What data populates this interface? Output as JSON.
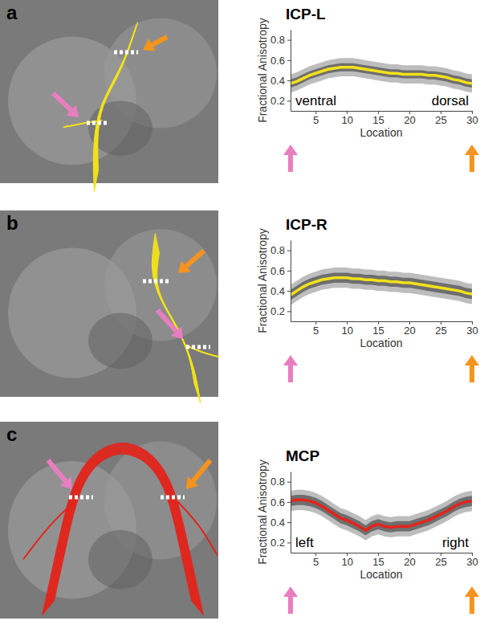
{
  "chart_data": [
    {
      "type": "line",
      "panel": "a",
      "title": "ICP-L",
      "x_label": "Location",
      "y_label": "Fractional Anisotropy",
      "annotations": [
        "ventral",
        "dorsal"
      ],
      "x": [
        1,
        2,
        3,
        4,
        5,
        6,
        7,
        8,
        9,
        10,
        11,
        12,
        13,
        14,
        15,
        16,
        17,
        18,
        19,
        20,
        21,
        22,
        23,
        24,
        25,
        26,
        27,
        28,
        29,
        30
      ],
      "xlim": [
        1,
        30
      ],
      "xticks": [
        5,
        10,
        15,
        20,
        25,
        30
      ],
      "ylim": [
        0.1,
        0.9
      ],
      "yticks": [
        0.2,
        0.4,
        0.6,
        0.8
      ],
      "series": [
        {
          "color": "#f2e21a",
          "values": [
            0.37,
            0.39,
            0.42,
            0.45,
            0.47,
            0.49,
            0.51,
            0.52,
            0.53,
            0.53,
            0.53,
            0.52,
            0.51,
            0.5,
            0.49,
            0.48,
            0.47,
            0.47,
            0.46,
            0.46,
            0.46,
            0.46,
            0.45,
            0.45,
            0.44,
            0.43,
            0.41,
            0.4,
            0.38,
            0.37
          ],
          "inner_lower": [
            0.33,
            0.35,
            0.38,
            0.41,
            0.43,
            0.45,
            0.47,
            0.48,
            0.49,
            0.49,
            0.49,
            0.48,
            0.47,
            0.46,
            0.45,
            0.44,
            0.43,
            0.43,
            0.42,
            0.42,
            0.42,
            0.42,
            0.41,
            0.41,
            0.4,
            0.39,
            0.37,
            0.36,
            0.34,
            0.33
          ],
          "inner_upper": [
            0.41,
            0.43,
            0.46,
            0.49,
            0.51,
            0.53,
            0.55,
            0.56,
            0.57,
            0.57,
            0.57,
            0.56,
            0.55,
            0.54,
            0.53,
            0.52,
            0.51,
            0.51,
            0.5,
            0.5,
            0.5,
            0.5,
            0.49,
            0.49,
            0.48,
            0.47,
            0.45,
            0.44,
            0.42,
            0.41
          ],
          "outer_lower": [
            0.28,
            0.3,
            0.33,
            0.36,
            0.38,
            0.4,
            0.42,
            0.43,
            0.44,
            0.44,
            0.44,
            0.43,
            0.42,
            0.41,
            0.4,
            0.39,
            0.38,
            0.38,
            0.37,
            0.37,
            0.37,
            0.37,
            0.36,
            0.36,
            0.35,
            0.34,
            0.32,
            0.31,
            0.29,
            0.28
          ],
          "outer_upper": [
            0.46,
            0.48,
            0.51,
            0.54,
            0.56,
            0.58,
            0.6,
            0.61,
            0.62,
            0.62,
            0.62,
            0.61,
            0.6,
            0.59,
            0.58,
            0.57,
            0.56,
            0.56,
            0.55,
            0.55,
            0.55,
            0.55,
            0.54,
            0.54,
            0.53,
            0.52,
            0.5,
            0.49,
            0.47,
            0.46
          ]
        }
      ]
    },
    {
      "type": "line",
      "panel": "b",
      "title": "ICP-R",
      "x_label": "Location",
      "y_label": "Fractional Anisotropy",
      "x": [
        1,
        2,
        3,
        4,
        5,
        6,
        7,
        8,
        9,
        10,
        11,
        12,
        13,
        14,
        15,
        16,
        17,
        18,
        19,
        20,
        21,
        22,
        23,
        24,
        25,
        26,
        27,
        28,
        29,
        30
      ],
      "xlim": [
        1,
        30
      ],
      "xticks": [
        5,
        10,
        15,
        20,
        25,
        30
      ],
      "ylim": [
        0.1,
        0.9
      ],
      "yticks": [
        0.2,
        0.4,
        0.6,
        0.8
      ],
      "series": [
        {
          "color": "#f2e21a",
          "values": [
            0.36,
            0.4,
            0.44,
            0.47,
            0.49,
            0.51,
            0.52,
            0.53,
            0.53,
            0.53,
            0.52,
            0.52,
            0.51,
            0.51,
            0.5,
            0.5,
            0.49,
            0.49,
            0.48,
            0.48,
            0.47,
            0.46,
            0.45,
            0.44,
            0.43,
            0.42,
            0.41,
            0.4,
            0.38,
            0.37
          ],
          "inner_lower": [
            0.31,
            0.35,
            0.39,
            0.42,
            0.44,
            0.46,
            0.47,
            0.48,
            0.48,
            0.48,
            0.47,
            0.47,
            0.46,
            0.46,
            0.45,
            0.45,
            0.44,
            0.44,
            0.43,
            0.43,
            0.42,
            0.41,
            0.4,
            0.39,
            0.38,
            0.37,
            0.36,
            0.35,
            0.33,
            0.32
          ],
          "inner_upper": [
            0.41,
            0.45,
            0.49,
            0.52,
            0.54,
            0.56,
            0.57,
            0.58,
            0.58,
            0.58,
            0.57,
            0.57,
            0.56,
            0.56,
            0.55,
            0.55,
            0.54,
            0.54,
            0.53,
            0.53,
            0.52,
            0.51,
            0.5,
            0.49,
            0.48,
            0.47,
            0.46,
            0.45,
            0.43,
            0.42
          ],
          "outer_lower": [
            0.26,
            0.3,
            0.34,
            0.37,
            0.39,
            0.41,
            0.42,
            0.43,
            0.43,
            0.43,
            0.42,
            0.42,
            0.41,
            0.41,
            0.4,
            0.4,
            0.39,
            0.39,
            0.38,
            0.38,
            0.37,
            0.36,
            0.35,
            0.34,
            0.33,
            0.32,
            0.31,
            0.3,
            0.28,
            0.27
          ],
          "outer_upper": [
            0.46,
            0.5,
            0.54,
            0.57,
            0.59,
            0.61,
            0.62,
            0.63,
            0.63,
            0.63,
            0.62,
            0.62,
            0.61,
            0.61,
            0.6,
            0.6,
            0.59,
            0.59,
            0.58,
            0.58,
            0.57,
            0.56,
            0.55,
            0.54,
            0.53,
            0.52,
            0.51,
            0.5,
            0.48,
            0.47
          ]
        }
      ]
    },
    {
      "type": "line",
      "panel": "c",
      "title": "MCP",
      "x_label": "Location",
      "y_label": "Fractional Anisotropy",
      "annotations": [
        "left",
        "right"
      ],
      "x": [
        1,
        2,
        3,
        4,
        5,
        6,
        7,
        8,
        9,
        10,
        11,
        12,
        13,
        14,
        15,
        16,
        17,
        18,
        19,
        20,
        21,
        22,
        23,
        24,
        25,
        26,
        27,
        28,
        29,
        30
      ],
      "xlim": [
        1,
        30
      ],
      "xticks": [
        5,
        10,
        15,
        20,
        25,
        30
      ],
      "ylim": [
        0.1,
        0.9
      ],
      "yticks": [
        0.2,
        0.4,
        0.6,
        0.8
      ],
      "series": [
        {
          "color": "#e3241b",
          "values": [
            0.61,
            0.62,
            0.62,
            0.61,
            0.59,
            0.56,
            0.52,
            0.48,
            0.44,
            0.42,
            0.39,
            0.36,
            0.32,
            0.36,
            0.38,
            0.36,
            0.35,
            0.36,
            0.36,
            0.36,
            0.38,
            0.4,
            0.42,
            0.45,
            0.48,
            0.51,
            0.55,
            0.58,
            0.6,
            0.61
          ],
          "inner_lower": [
            0.56,
            0.57,
            0.57,
            0.56,
            0.54,
            0.51,
            0.47,
            0.43,
            0.39,
            0.37,
            0.34,
            0.31,
            0.27,
            0.31,
            0.33,
            0.31,
            0.3,
            0.31,
            0.31,
            0.31,
            0.33,
            0.35,
            0.37,
            0.4,
            0.43,
            0.46,
            0.5,
            0.53,
            0.55,
            0.56
          ],
          "inner_upper": [
            0.66,
            0.67,
            0.67,
            0.66,
            0.64,
            0.61,
            0.57,
            0.53,
            0.49,
            0.47,
            0.44,
            0.41,
            0.37,
            0.41,
            0.43,
            0.41,
            0.4,
            0.41,
            0.41,
            0.41,
            0.43,
            0.45,
            0.47,
            0.5,
            0.53,
            0.56,
            0.6,
            0.63,
            0.65,
            0.66
          ],
          "outer_lower": [
            0.51,
            0.52,
            0.52,
            0.51,
            0.49,
            0.46,
            0.42,
            0.38,
            0.34,
            0.32,
            0.29,
            0.26,
            0.22,
            0.26,
            0.28,
            0.26,
            0.25,
            0.26,
            0.26,
            0.26,
            0.28,
            0.3,
            0.32,
            0.35,
            0.38,
            0.41,
            0.45,
            0.48,
            0.5,
            0.51
          ],
          "outer_upper": [
            0.71,
            0.72,
            0.72,
            0.71,
            0.69,
            0.66,
            0.62,
            0.58,
            0.54,
            0.52,
            0.49,
            0.46,
            0.42,
            0.46,
            0.48,
            0.46,
            0.45,
            0.46,
            0.46,
            0.46,
            0.48,
            0.5,
            0.52,
            0.55,
            0.58,
            0.61,
            0.65,
            0.68,
            0.7,
            0.71
          ]
        }
      ]
    }
  ]
}
